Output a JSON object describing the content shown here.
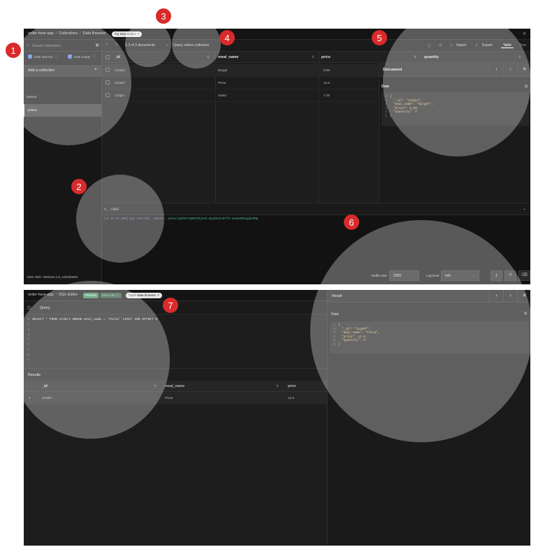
{
  "top": {
    "breadcrumbs": [
      "order-here-app",
      "Collections",
      "Data Browser"
    ],
    "try_dql_label": "Try DQL Editor ↗",
    "search": {
      "placeholder": "Search collections"
    },
    "hide_internal_label": "Hide internal",
    "hide_empty_label": "Hide empty",
    "add_collection_label": "Add a collection",
    "collections": [
      "menus",
      "orders"
    ],
    "selected_collection": "orders",
    "sdk_label": "Ditto SDK: WebJs4.4.8_e2525b684",
    "doc_count_label": "1-3 of 3 documents",
    "query_collection_label": "Query orders collection",
    "import_label": "Import",
    "export_label": "Export",
    "view_tabs": [
      "Table",
      "Tree"
    ],
    "columns": [
      "_id",
      "meal_name",
      "price",
      "quantity"
    ],
    "rows": [
      {
        "_id": "123abc",
        "meal_name": "Burger",
        "price": "8.99"
      },
      {
        "_id": "123def",
        "meal_name": "Pizza",
        "price": "12.5"
      },
      {
        "_id": "123ghi",
        "meal_name": "Salad",
        "price": "7.25"
      }
    ],
    "doc_panel": {
      "title": "Document",
      "data_label": "Data",
      "code_lines": [
        "{",
        "  \"_id\": \"123abc\",",
        "  \"meal_name\": \"Burger\",",
        "  \"price\": 8.99,",
        "  \"quantity\": 5",
        "}"
      ]
    },
    "logs_label": ">_ LOGS",
    "log_line_prefix": "[14:42:32:102] ",
    "log_line_mid": "pay started, remote = ",
    "log_line_tail": "pkAoclgVMC1TQHR2dhyVeD-Hg1ZVyFu5TfD-avGwoKDUggHeHMg",
    "buffer_size_label": "Buffer size",
    "buffer_size_value": "2000",
    "log_level_label": "Log level",
    "log_level_value": "Info"
  },
  "bottom": {
    "breadcrumbs": [
      "order-here-app",
      "DQL Editor"
    ],
    "preview_badge": "Preview",
    "more_info_label": "More info ⓘ",
    "open_browser_label": "Open data browser ↗",
    "query_tab_label": "Query",
    "query_lines": [
      "SELECT * FROM orders WHERE meal_name = 'Pizza' LIMIT 100 OFFSET 0",
      "",
      "",
      "",
      "",
      "",
      "",
      "",
      ""
    ],
    "results_label": "Results",
    "result_columns": [
      "_id",
      "meal_name",
      "price"
    ],
    "result_rows": [
      {
        "num": "1",
        "_id": "123def",
        "meal_name": "Pizza",
        "price": "12.5"
      }
    ],
    "result_panel": {
      "title": "Result",
      "data_label": "Data",
      "code_lines": [
        "{",
        "  \"_id\": \"123def\",",
        "  \"meal_name\": \"Pizza\",",
        "  \"price\": 12.5,",
        "  \"quantity\": 5",
        "}"
      ]
    }
  },
  "callouts": [
    "1",
    "2",
    "3",
    "4",
    "5",
    "6",
    "7"
  ],
  "colors": {
    "callout_red": "#d92b2b",
    "checkbox_blue": "#4a6fd0",
    "preview_green": "#3d8b58"
  }
}
